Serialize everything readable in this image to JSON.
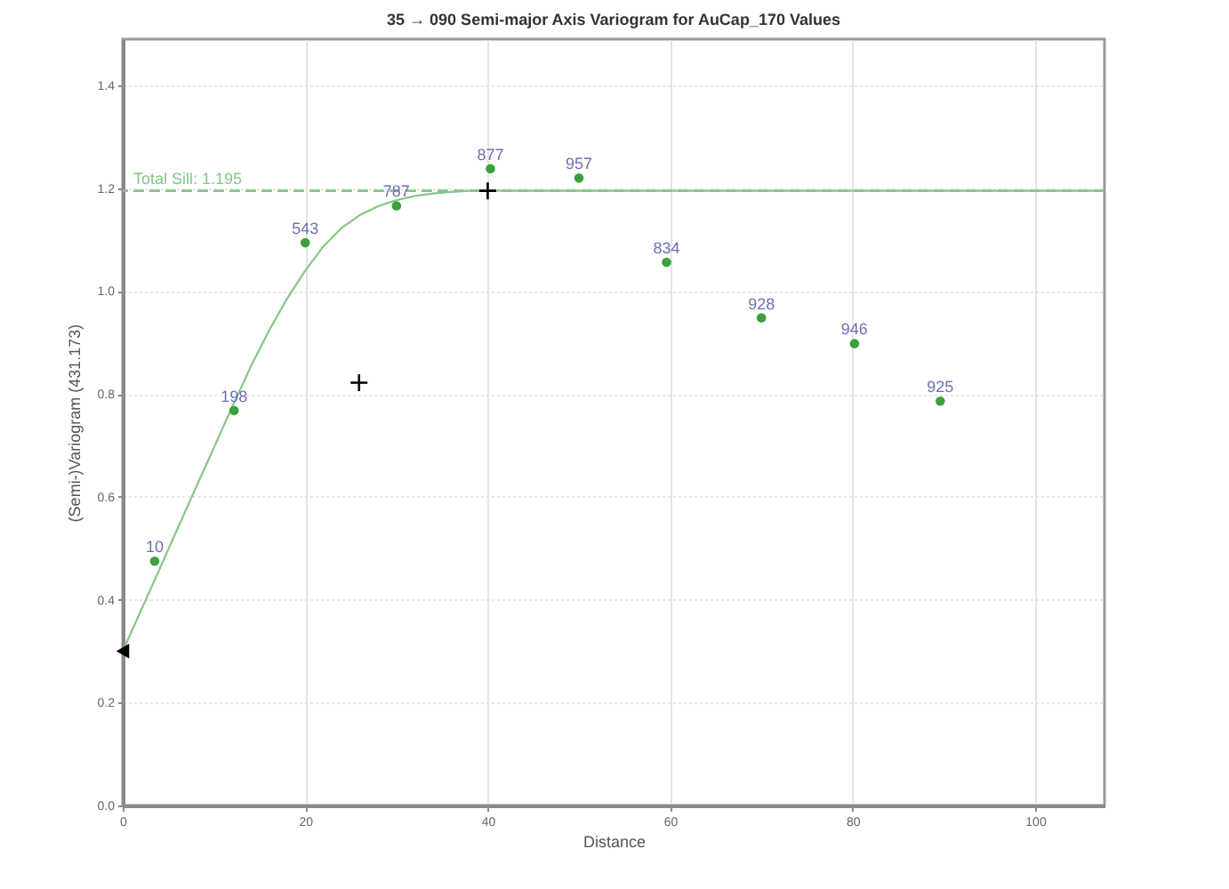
{
  "chart_data": {
    "type": "scatter",
    "title": "35 → 090 Semi-major Axis Variogram for AuCap_170 Values",
    "xlabel": "Distance",
    "ylabel": "(Semi-)Variogram (431.173)",
    "xlim": [
      0,
      107.6
    ],
    "ylim": [
      0,
      1.49
    ],
    "xticks": [
      0,
      20,
      40,
      60,
      80,
      100
    ],
    "yticks": [
      {
        "value": 0,
        "label": "0.0"
      },
      0.2,
      0.4,
      0.6,
      0.8,
      {
        "value": 1,
        "label": "1.0"
      },
      1.2,
      1.4
    ],
    "grid": true,
    "series": [
      {
        "type": "line",
        "color": "#88c688",
        "line_style": "solid",
        "marker": "none",
        "x": [
          0,
          2,
          4,
          6,
          8,
          10,
          12,
          14,
          16,
          18,
          20,
          22,
          24,
          26,
          28,
          30,
          32,
          34,
          36,
          38,
          40,
          107.6
        ],
        "values": [
          0.3,
          0.379,
          0.458,
          0.538,
          0.617,
          0.696,
          0.775,
          0.852,
          0.922,
          0.985,
          1.04,
          1.087,
          1.123,
          1.148,
          1.165,
          1.177,
          1.185,
          1.19,
          1.193,
          1.195,
          1.195,
          1.195
        ]
      },
      {
        "color": "#3ca03c",
        "marker": "circle",
        "x": [
          3.5,
          12.2,
          20,
          30,
          40.3,
          50,
          59.6,
          70,
          80.2,
          89.6
        ],
        "values": [
          0.475,
          0.768,
          1.094,
          1.166,
          1.238,
          1.22,
          1.056,
          0.948,
          0.898,
          0.786
        ]
      },
      {
        "color": "#000000",
        "marker": "cross",
        "x": [
          25.9,
          40
        ],
        "values": [
          0.822,
          1.195
        ]
      },
      {
        "color": "#000000",
        "marker": "triangle",
        "x": [
          0
        ],
        "values": [
          0.3
        ]
      }
    ],
    "ref_lines": [
      {
        "axis": "y",
        "value": 1.195,
        "label": "Total Sill: 1.195",
        "color": "#88c688",
        "line_style": "dashed"
      }
    ],
    "annotations": [
      {
        "text": "10",
        "x": 3.5,
        "y": 0.475
      },
      {
        "text": "198",
        "x": 12.2,
        "y": 0.768
      },
      {
        "text": "543",
        "x": 20,
        "y": 1.094
      },
      {
        "text": "787",
        "x": 30,
        "y": 1.166
      },
      {
        "text": "877",
        "x": 40.3,
        "y": 1.238
      },
      {
        "text": "957",
        "x": 50,
        "y": 1.22
      },
      {
        "text": "834",
        "x": 59.6,
        "y": 1.056
      },
      {
        "text": "928",
        "x": 70,
        "y": 0.948
      },
      {
        "text": "946",
        "x": 80.2,
        "y": 0.898
      },
      {
        "text": "925",
        "x": 89.6,
        "y": 0.786
      }
    ]
  }
}
